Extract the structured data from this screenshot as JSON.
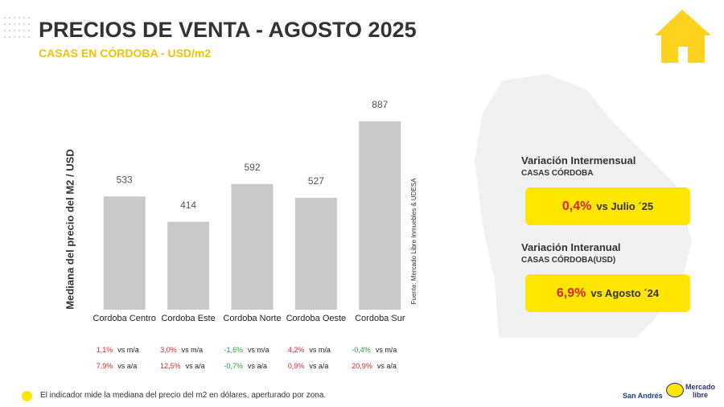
{
  "chart_data": {
    "type": "bar",
    "title": "PRECIOS DE VENTA - AGOSTO 2025",
    "subtitle": "CASAS EN CÓRDOBA - USD/m2",
    "y_label": "Mediana del precio del M2 / USD",
    "source": "Fuente: Mercado Libre Inmuebles & UDESA",
    "categories": [
      "Cordoba Centro",
      "Cordoba Este",
      "Cordoba Norte",
      "Cordoba Oeste",
      "Cordoba Sur"
    ],
    "values": [
      533,
      414,
      592,
      527,
      887
    ],
    "color": "#c9c9c9",
    "ylim": [
      0,
      1000
    ],
    "mom_label": "vs m/a",
    "yoy_label": "vs a/a",
    "mom": [
      "1,1%",
      "3,0%",
      "-1,6%",
      "4,2%",
      "-0,4%"
    ],
    "yoy": [
      "7,9%",
      "12,5%",
      "-0,7%",
      "0,9%",
      "20,9%"
    ],
    "positive_color": "#d9262b",
    "negative_color": "#2e9a3c"
  },
  "panels": [
    {
      "title": "Variación Intermensual",
      "subtitle": "CASAS CÓRDOBA",
      "value": "0,4%",
      "text": "vs Julio ´25"
    },
    {
      "title": "Variación Interanual",
      "subtitle": "CASAS CÓRDOBA(USD)",
      "value": "6,9%",
      "text": "vs Agosto ´24"
    }
  ],
  "footer": {
    "note": "El indicador mide la mediana del precio del m2 en dólares, aperturado por zona.",
    "logo_udesa": "San Andrés",
    "logo_ml": [
      "Mercado",
      "libre"
    ]
  }
}
